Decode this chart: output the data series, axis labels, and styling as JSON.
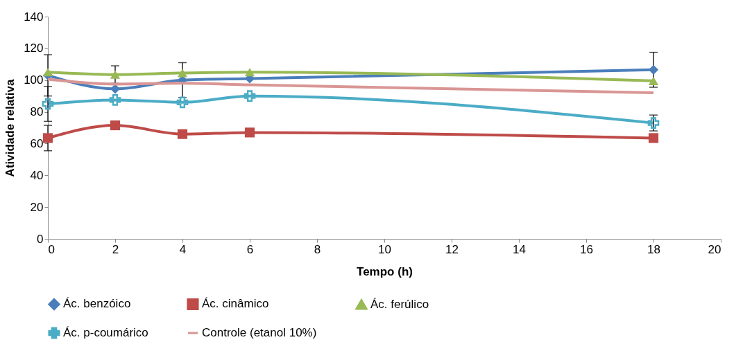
{
  "chart_data": {
    "type": "line",
    "xlabel": "Tempo (h)",
    "ylabel": "Atividade relativa",
    "x": [
      0,
      2,
      4,
      6,
      18
    ],
    "series": [
      {
        "name": "Ác. benzóico",
        "color": "#4a7ebb",
        "marker": "diamond",
        "values": [
          103,
          94.5,
          100,
          101,
          106.5
        ],
        "errors": [
          13,
          null,
          11,
          null,
          11
        ]
      },
      {
        "name": "Ác. cinâmico",
        "color": "#be4b48",
        "marker": "square",
        "values": [
          63.5,
          71.5,
          66,
          67,
          63.5
        ],
        "errors": [
          8,
          null,
          null,
          null,
          null
        ]
      },
      {
        "name": "Ác. ferúlico",
        "color": "#98b954",
        "marker": "triangle",
        "values": [
          105,
          103.5,
          104.5,
          105,
          99.5
        ],
        "errors": [
          null,
          5.5,
          null,
          null,
          null
        ]
      },
      {
        "name": "Ác. p-coumárico",
        "color": "#4bacc6",
        "marker": "cross",
        "values": [
          85,
          87.5,
          86,
          90,
          73
        ],
        "errors": [
          11,
          null,
          null,
          null,
          5
        ]
      },
      {
        "name": "Controle (etanol 10%)",
        "color": "#d99694",
        "marker": "none",
        "values": [
          100.5,
          97.5,
          98,
          97,
          92
        ]
      }
    ],
    "xlim": [
      0,
      20
    ],
    "xticks": [
      0,
      2,
      4,
      6,
      8,
      10,
      12,
      14,
      16,
      18,
      20
    ],
    "ylim": [
      0,
      140
    ],
    "yticks": [
      0,
      20,
      40,
      60,
      80,
      100,
      120,
      140
    ],
    "grid": false,
    "legend": "bottom"
  }
}
